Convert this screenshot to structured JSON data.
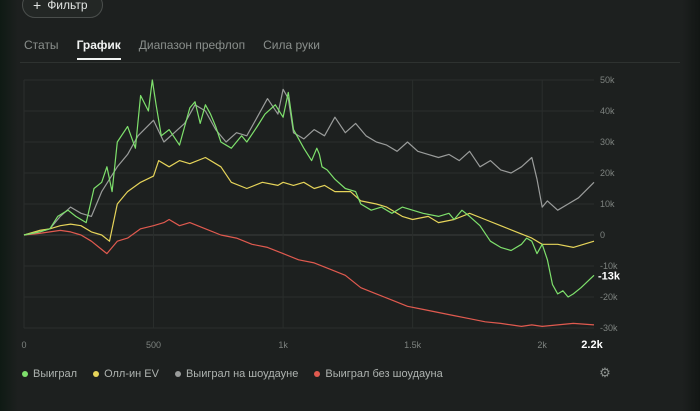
{
  "filter_button": {
    "label": "Фильтр",
    "icon": "plus-icon"
  },
  "tabs": [
    {
      "label": "Статы",
      "active": false
    },
    {
      "label": "График",
      "active": true
    },
    {
      "label": "Диапазон префлоп",
      "active": false
    },
    {
      "label": "Сила руки",
      "active": false
    }
  ],
  "chart_data": {
    "type": "line",
    "title": "",
    "xlabel": "",
    "ylabel": "",
    "xlim": [
      0,
      2200
    ],
    "ylim": [
      -30000,
      50000
    ],
    "x_ticks": [
      0,
      500,
      1000,
      1500,
      2000
    ],
    "x_tick_labels": [
      "0",
      "500",
      "1k",
      "1.5k",
      "2k"
    ],
    "y_ticks": [
      50000,
      40000,
      30000,
      20000,
      10000,
      0,
      -10000,
      -20000,
      -30000
    ],
    "y_tick_labels": [
      "50k",
      "40k",
      "30k",
      "20k",
      "10k",
      "0",
      "-10k",
      "-20k",
      "-30k"
    ],
    "end_x_label": "2.2k",
    "end_y_label": "-13k",
    "grid": true,
    "legend_position": "bottom-left",
    "series": [
      {
        "name": "Выиграл",
        "color": "#7ee06c",
        "x": [
          0,
          60,
          100,
          130,
          170,
          200,
          240,
          270,
          300,
          320,
          340,
          360,
          400,
          430,
          450,
          480,
          495,
          510,
          530,
          560,
          600,
          640,
          660,
          680,
          700,
          720,
          740,
          760,
          800,
          840,
          860,
          900,
          930,
          970,
          1000,
          1020,
          1040,
          1080,
          1110,
          1130,
          1140,
          1150,
          1170,
          1200,
          1240,
          1280,
          1300,
          1340,
          1380,
          1420,
          1460,
          1500,
          1540,
          1600,
          1640,
          1660,
          1690,
          1720,
          1760,
          1800,
          1840,
          1880,
          1920,
          1940,
          1960,
          1980,
          2000,
          2020,
          2040,
          2060,
          2080,
          2100,
          2120,
          2150,
          2200
        ],
        "y": [
          0,
          1000,
          2000,
          6000,
          8000,
          6000,
          4000,
          15000,
          17000,
          22000,
          14000,
          30000,
          35000,
          28000,
          45000,
          40000,
          50000,
          42000,
          32000,
          34000,
          29000,
          41000,
          43000,
          36000,
          42000,
          39000,
          35000,
          30000,
          28000,
          32000,
          30000,
          35000,
          39000,
          42000,
          38000,
          46000,
          34000,
          28000,
          24000,
          28000,
          26000,
          22000,
          21000,
          18000,
          15000,
          14000,
          10000,
          8000,
          9000,
          7000,
          9000,
          8000,
          7000,
          6000,
          7000,
          5000,
          8000,
          6000,
          3000,
          -2000,
          -4000,
          -5000,
          -3000,
          -1000,
          -2000,
          -6000,
          -3000,
          -8000,
          -16000,
          -19000,
          -18000,
          -20000,
          -19000,
          -17000,
          -13000
        ]
      },
      {
        "name": "Олл-ин EV",
        "color": "#e6d45a",
        "x": [
          0,
          60,
          100,
          140,
          180,
          220,
          260,
          300,
          330,
          360,
          400,
          450,
          500,
          520,
          560,
          600,
          640,
          700,
          760,
          800,
          860,
          920,
          980,
          1000,
          1040,
          1080,
          1120,
          1160,
          1200,
          1260,
          1300,
          1360,
          1400,
          1460,
          1500,
          1560,
          1600,
          1660,
          1720,
          1780,
          1840,
          1900,
          1960,
          2000,
          2060,
          2120,
          2200
        ],
        "y": [
          0,
          1500,
          2000,
          3000,
          3500,
          3000,
          1000,
          0,
          -2000,
          10000,
          14000,
          17000,
          19000,
          24000,
          22000,
          24000,
          23000,
          25000,
          22000,
          17000,
          15000,
          17000,
          16000,
          17000,
          16000,
          17000,
          15000,
          16000,
          14000,
          14000,
          11000,
          10000,
          9000,
          6000,
          5000,
          6000,
          4000,
          5000,
          7000,
          5000,
          3000,
          1000,
          -1000,
          -3000,
          -3000,
          -4000,
          -2000
        ]
      },
      {
        "name": "Выиграл на шоудауне",
        "color": "#9a9c9b",
        "x": [
          0,
          60,
          100,
          140,
          180,
          220,
          260,
          300,
          330,
          360,
          400,
          440,
          500,
          540,
          580,
          620,
          660,
          700,
          740,
          780,
          820,
          860,
          900,
          940,
          980,
          1000,
          1020,
          1040,
          1080,
          1120,
          1160,
          1200,
          1240,
          1280,
          1320,
          1360,
          1400,
          1440,
          1480,
          1520,
          1560,
          1600,
          1640,
          1680,
          1720,
          1760,
          1800,
          1840,
          1880,
          1920,
          1960,
          1980,
          2000,
          2020,
          2060,
          2100,
          2140,
          2200
        ],
        "y": [
          0,
          1000,
          2000,
          6000,
          9000,
          7000,
          6000,
          14000,
          18000,
          22000,
          26000,
          32000,
          37000,
          30000,
          33000,
          36000,
          42000,
          40000,
          34000,
          30000,
          33000,
          32000,
          38000,
          44000,
          39000,
          47000,
          44000,
          33000,
          31000,
          34000,
          32000,
          38000,
          33000,
          36000,
          32000,
          30000,
          29000,
          27000,
          30000,
          27000,
          26000,
          25000,
          26000,
          24000,
          27000,
          22000,
          24000,
          21000,
          20000,
          22000,
          25000,
          18000,
          9000,
          11000,
          8000,
          10000,
          12000,
          17000
        ]
      },
      {
        "name": "Выиграл без шоудауна",
        "color": "#e05a4f",
        "x": [
          0,
          60,
          100,
          140,
          180,
          220,
          260,
          290,
          320,
          360,
          400,
          450,
          500,
          540,
          560,
          600,
          640,
          700,
          760,
          820,
          880,
          940,
          1000,
          1060,
          1120,
          1180,
          1240,
          1300,
          1360,
          1420,
          1480,
          1540,
          1600,
          1660,
          1720,
          1780,
          1840,
          1880,
          1920,
          1960,
          2000,
          2060,
          2120,
          2200
        ],
        "y": [
          0,
          500,
          1000,
          1500,
          1000,
          0,
          -2000,
          -4000,
          -6000,
          -2000,
          -1000,
          2000,
          3000,
          4000,
          5000,
          3000,
          4000,
          2000,
          0,
          -1000,
          -3000,
          -4000,
          -6000,
          -8000,
          -9000,
          -11000,
          -13000,
          -17000,
          -19000,
          -21000,
          -23000,
          -24000,
          -25000,
          -26000,
          -27000,
          -28000,
          -28500,
          -29000,
          -29500,
          -29000,
          -29500,
          -29000,
          -28500,
          -29000
        ]
      }
    ]
  }
}
